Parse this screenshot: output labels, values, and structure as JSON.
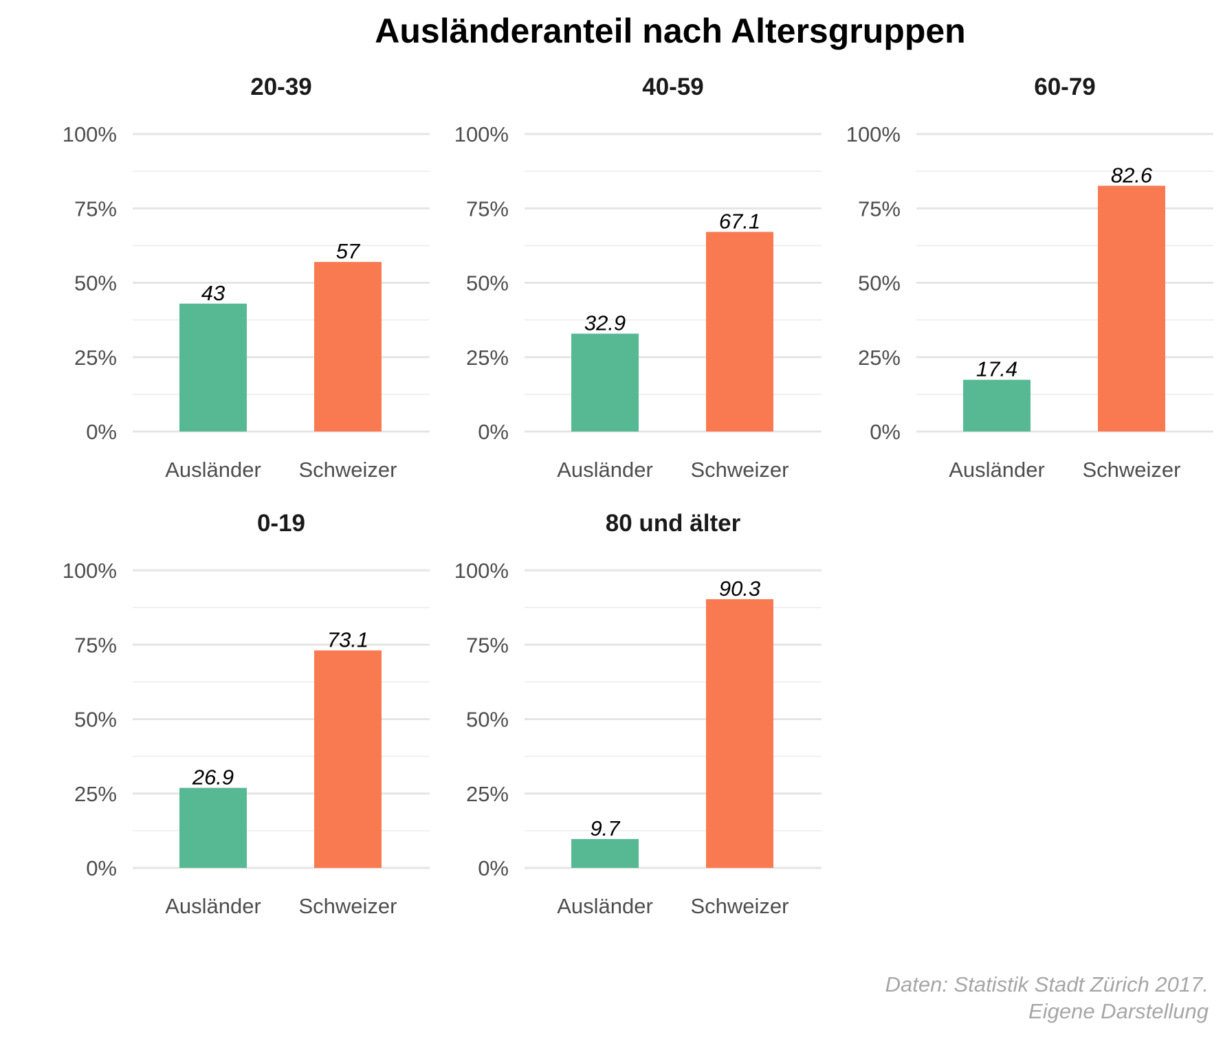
{
  "chart_data": {
    "type": "bar",
    "title": "Ausländeranteil nach Altersgruppen",
    "ylim": [
      0,
      100
    ],
    "yticks": [
      0,
      25,
      50,
      75,
      100
    ],
    "ytick_labels": [
      "0%",
      "25%",
      "50%",
      "75%",
      "100%"
    ],
    "grid": true,
    "categories": [
      "Ausländer",
      "Schweizer"
    ],
    "colors": {
      "Ausländer": "#57b993",
      "Schweizer": "#f97a50"
    },
    "facets": [
      {
        "name": "20-39",
        "values": [
          43,
          57
        ],
        "labels": [
          "43",
          "57"
        ]
      },
      {
        "name": "40-59",
        "values": [
          32.9,
          67.1
        ],
        "labels": [
          "32.9",
          "67.1"
        ]
      },
      {
        "name": "60-79",
        "values": [
          17.4,
          82.6
        ],
        "labels": [
          "17.4",
          "82.6"
        ]
      },
      {
        "name": "0-19",
        "values": [
          26.9,
          73.1
        ],
        "labels": [
          "26.9",
          "73.1"
        ]
      },
      {
        "name": "80 und älter",
        "values": [
          9.7,
          90.3
        ],
        "labels": [
          "9.7",
          "90.3"
        ]
      }
    ],
    "caption": [
      "Daten: Statistik Stadt Zürich 2017.",
      "Eigene Darstellung"
    ]
  }
}
